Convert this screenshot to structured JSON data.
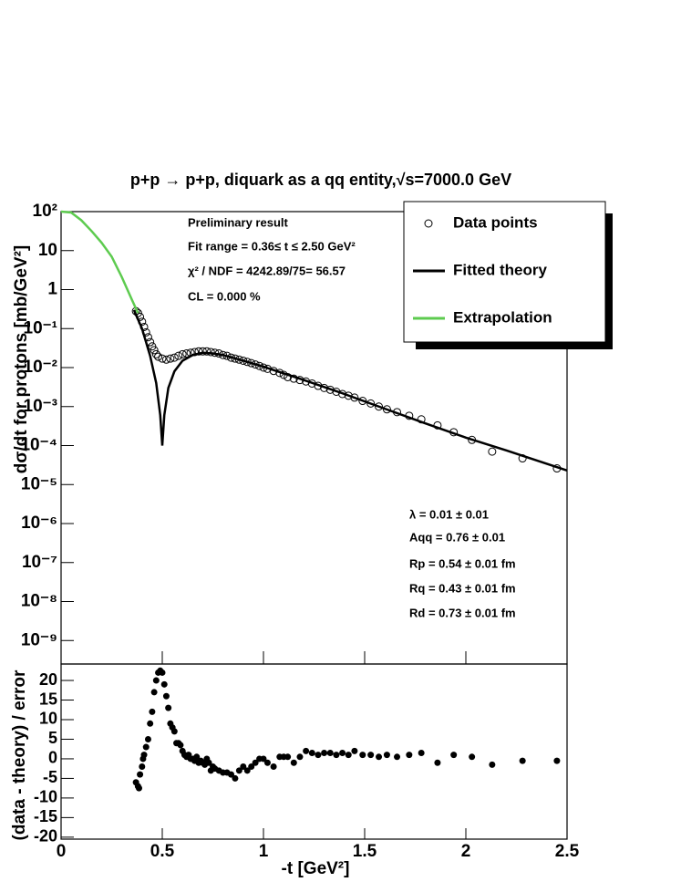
{
  "chart_data": [
    {
      "type": "line",
      "title": "p+p → p+p, diquark as a qq entity,√s=7000.0 GeV",
      "y_label": "dσ/dt for protons [mb/GeV²]",
      "log_y": true,
      "xlim": [
        0,
        2.5
      ],
      "ylim": [
        2.5e-10,
        100
      ],
      "yticks": [
        {
          "value": 100,
          "label": "10²"
        },
        10,
        1,
        {
          "value": 0.1,
          "label": "10⁻¹"
        },
        {
          "value": 0.01,
          "label": "10⁻²"
        },
        {
          "value": 0.001,
          "label": "10⁻³"
        },
        {
          "value": 0.0001,
          "label": "10⁻⁴"
        },
        {
          "value": 1e-05,
          "label": "10⁻⁵"
        },
        {
          "value": 1e-06,
          "label": "10⁻⁶"
        },
        {
          "value": 1e-07,
          "label": "10⁻⁷"
        },
        {
          "value": 1e-08,
          "label": "10⁻⁸"
        },
        {
          "value": 1e-09,
          "label": "10⁻⁹"
        }
      ],
      "legend": "top-right",
      "annotations": [
        "Preliminary result",
        "Fit range = 0.36≤ t ≤ 2.50 GeV²",
        "χ² / NDF = 4242.89/75= 56.57",
        "CL = 0.000 %"
      ],
      "parameters": [
        "λ = 0.01 ± 0.01",
        "Aqq = 0.76 ± 0.01",
        "Rp = 0.54 ± 0.01 fm",
        "Rq = 0.43 ± 0.01 fm",
        "Rd = 0.73 ± 0.01 fm"
      ],
      "series": [
        {
          "name": "Data points",
          "color": "#000000",
          "marker": "open-circle",
          "x": [
            0.37,
            0.38,
            0.39,
            0.4,
            0.41,
            0.42,
            0.43,
            0.44,
            0.45,
            0.46,
            0.47,
            0.48,
            0.5,
            0.52,
            0.54,
            0.56,
            0.58,
            0.6,
            0.62,
            0.64,
            0.66,
            0.68,
            0.7,
            0.72,
            0.74,
            0.76,
            0.78,
            0.8,
            0.82,
            0.84,
            0.86,
            0.88,
            0.9,
            0.92,
            0.94,
            0.96,
            0.98,
            1.0,
            1.02,
            1.05,
            1.08,
            1.1,
            1.12,
            1.15,
            1.18,
            1.21,
            1.24,
            1.27,
            1.3,
            1.33,
            1.36,
            1.39,
            1.42,
            1.45,
            1.49,
            1.53,
            1.57,
            1.61,
            1.66,
            1.72,
            1.78,
            1.86,
            1.94,
            2.03,
            2.13,
            2.28,
            2.45
          ],
          "values": [
            0.28,
            0.25,
            0.2,
            0.15,
            0.11,
            0.08,
            0.06,
            0.045,
            0.035,
            0.028,
            0.022,
            0.019,
            0.017,
            0.016,
            0.017,
            0.018,
            0.02,
            0.022,
            0.023,
            0.024,
            0.025,
            0.026,
            0.026,
            0.026,
            0.025,
            0.024,
            0.023,
            0.021,
            0.02,
            0.018,
            0.017,
            0.016,
            0.015,
            0.014,
            0.013,
            0.012,
            0.011,
            0.01,
            0.0093,
            0.0082,
            0.0073,
            0.0065,
            0.0057,
            0.0052,
            0.0048,
            0.0044,
            0.0039,
            0.0034,
            0.003,
            0.0027,
            0.0024,
            0.0021,
            0.0019,
            0.0017,
            0.0014,
            0.0012,
            0.001,
            0.00085,
            0.00072,
            0.00058,
            0.00047,
            0.00033,
            0.00022,
            0.00014,
            7e-05,
            4.7e-05,
            2.6e-05
          ]
        },
        {
          "name": "Fitted theory",
          "color": "#000000",
          "marker": "line",
          "x": [
            0.36,
            0.4,
            0.44,
            0.47,
            0.49,
            0.5,
            0.51,
            0.53,
            0.56,
            0.6,
            0.65,
            0.7,
            0.75,
            0.8,
            0.9,
            1.0,
            1.2,
            1.4,
            1.6,
            1.8,
            2.0,
            2.2,
            2.5
          ],
          "values": [
            0.3,
            0.1,
            0.02,
            0.004,
            0.0006,
            0.0001,
            0.0006,
            0.003,
            0.008,
            0.015,
            0.021,
            0.024,
            0.023,
            0.021,
            0.015,
            0.0105,
            0.0048,
            0.0021,
            0.00088,
            0.00037,
            0.00016,
            7.5e-05,
            2.3e-05
          ]
        },
        {
          "name": "Extrapolation",
          "color": "#5dcb4f",
          "marker": "line",
          "x": [
            0,
            0.05,
            0.1,
            0.15,
            0.2,
            0.25,
            0.3,
            0.35,
            0.38
          ],
          "values": [
            100,
            95,
            60,
            32,
            16,
            7,
            2.1,
            0.55,
            0.25
          ]
        }
      ]
    },
    {
      "type": "scatter",
      "x_label": "-t [GeV²]",
      "y_label": "(data - theory) / error",
      "color": "#000000",
      "xlim": [
        0,
        2.5
      ],
      "xticks": [
        0,
        0.5,
        1,
        1.5,
        2,
        2.5
      ],
      "ylim": [
        -20.5,
        24.2
      ],
      "yticks": [
        -20,
        -15,
        -10,
        -5,
        0,
        5,
        10,
        15,
        20
      ],
      "x": [
        0.37,
        0.38,
        0.385,
        0.39,
        0.4,
        0.405,
        0.41,
        0.42,
        0.43,
        0.44,
        0.45,
        0.46,
        0.47,
        0.48,
        0.49,
        0.5,
        0.51,
        0.52,
        0.53,
        0.54,
        0.55,
        0.56,
        0.57,
        0.58,
        0.59,
        0.6,
        0.61,
        0.62,
        0.63,
        0.64,
        0.65,
        0.66,
        0.67,
        0.68,
        0.69,
        0.7,
        0.71,
        0.72,
        0.73,
        0.74,
        0.75,
        0.76,
        0.78,
        0.8,
        0.82,
        0.84,
        0.86,
        0.88,
        0.9,
        0.92,
        0.94,
        0.96,
        0.98,
        1.0,
        1.02,
        1.05,
        1.08,
        1.1,
        1.12,
        1.15,
        1.18,
        1.21,
        1.24,
        1.27,
        1.3,
        1.33,
        1.36,
        1.39,
        1.42,
        1.45,
        1.49,
        1.53,
        1.57,
        1.61,
        1.66,
        1.72,
        1.78,
        1.86,
        1.94,
        2.03,
        2.13,
        2.28,
        2.45
      ],
      "values": [
        -6,
        -7,
        -7.5,
        -4,
        -2,
        0,
        1,
        3,
        5,
        9,
        12,
        17,
        20,
        22,
        22.5,
        22,
        19,
        16,
        13,
        9,
        8,
        7,
        4,
        4,
        3.5,
        2,
        1,
        0.5,
        1,
        0,
        0,
        -0.5,
        0.5,
        -1,
        -0.5,
        -1,
        -1.5,
        0,
        -1,
        -3,
        -2,
        -2.5,
        -3,
        -3.5,
        -3.5,
        -4,
        -5,
        -3,
        -2,
        -3,
        -2,
        -1,
        0,
        0,
        -1,
        -2,
        0.5,
        0.5,
        0.5,
        -1,
        0.5,
        2,
        1.5,
        1,
        1.5,
        1.5,
        1,
        1.5,
        1,
        2,
        1,
        1,
        0.5,
        1,
        0.5,
        1,
        1.5,
        -1,
        1,
        0.5,
        -1.5,
        -0.5,
        -0.5
      ]
    }
  ]
}
